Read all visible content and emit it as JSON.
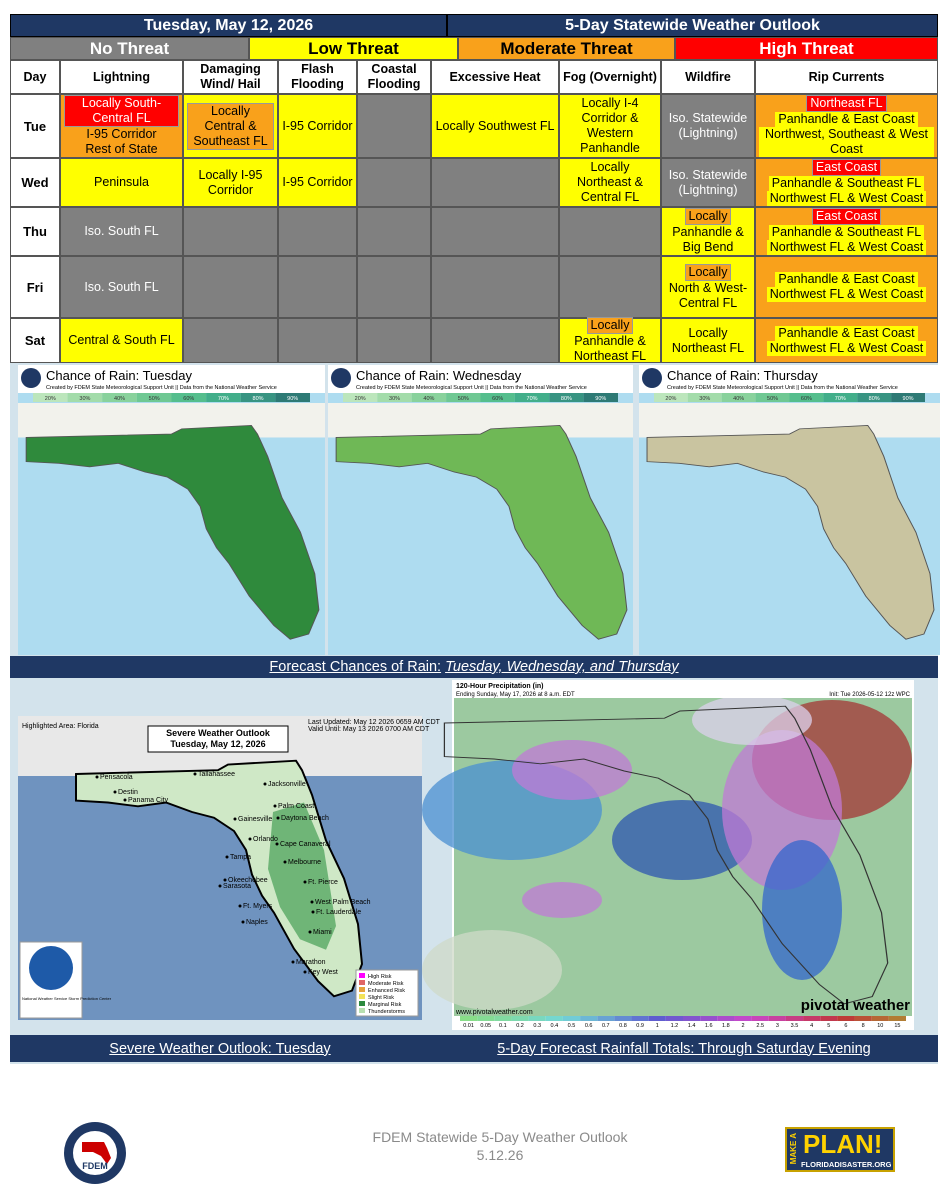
{
  "header": {
    "date": "Tuesday, May 12, 2026",
    "title": "5-Day Statewide Weather Outlook"
  },
  "legend": [
    {
      "label": "No Threat",
      "level": "none"
    },
    {
      "label": "Low Threat",
      "level": "low"
    },
    {
      "label": "Moderate Threat",
      "level": "moderate"
    },
    {
      "label": "High Threat",
      "level": "high"
    }
  ],
  "table": {
    "columns": [
      "Day",
      "Lightning",
      "Damaging Wind/ Hail",
      "Flash Flooding",
      "Coastal Flooding",
      "Excessive Heat",
      "Fog (Overnight)",
      "Wildfire",
      "Rip Currents"
    ],
    "rows": [
      {
        "day": "Tue",
        "cells": [
          {
            "level": "moderate",
            "items": [
              {
                "text": "Locally South-Central FL",
                "level": "high"
              },
              {
                "text": "I-95 Corridor",
                "level": null
              },
              {
                "text": "Rest of State",
                "level": null
              }
            ]
          },
          {
            "level": "low",
            "items": [
              {
                "text": "Locally Central & Southeast FL",
                "level": "moderate"
              }
            ]
          },
          {
            "level": "low",
            "items": [
              {
                "text": "I-95 Corridor",
                "level": null
              }
            ]
          },
          {
            "level": "none",
            "items": []
          },
          {
            "level": "low",
            "items": [
              {
                "text": "Locally Southwest FL",
                "level": null
              }
            ]
          },
          {
            "level": "low",
            "items": [
              {
                "text": "Locally I-4 Corridor & Western Panhandle",
                "level": null
              }
            ]
          },
          {
            "level": "none",
            "items": [
              {
                "text": "Iso. Statewide (Lightning)",
                "level": null
              }
            ]
          },
          {
            "level": "moderate",
            "items": [
              {
                "text": "Northeast FL",
                "level": "high"
              },
              {
                "text": "Panhandle & East Coast",
                "level": "low"
              },
              {
                "text": "Northwest, Southeast & West Coast",
                "level": "low"
              }
            ]
          }
        ]
      },
      {
        "day": "Wed",
        "cells": [
          {
            "level": "low",
            "items": [
              {
                "text": "Peninsula",
                "level": null
              }
            ]
          },
          {
            "level": "low",
            "items": [
              {
                "text": "Locally I-95 Corridor",
                "level": null
              }
            ]
          },
          {
            "level": "low",
            "items": [
              {
                "text": "I-95 Corridor",
                "level": null
              }
            ]
          },
          {
            "level": "none",
            "items": []
          },
          {
            "level": "none",
            "items": []
          },
          {
            "level": "low",
            "items": [
              {
                "text": "Locally Northeast & Central FL",
                "level": null
              }
            ]
          },
          {
            "level": "none",
            "items": [
              {
                "text": "Iso. Statewide (Lightning)",
                "level": null
              }
            ]
          },
          {
            "level": "moderate",
            "items": [
              {
                "text": "East Coast",
                "level": "high"
              },
              {
                "text": "Panhandle & Southeast FL",
                "level": "low"
              },
              {
                "text": "Northwest FL & West Coast",
                "level": "low"
              }
            ]
          }
        ]
      },
      {
        "day": "Thu",
        "cells": [
          {
            "level": "none",
            "items": [
              {
                "text": "Iso. South FL",
                "level": null
              }
            ]
          },
          {
            "level": "none",
            "items": []
          },
          {
            "level": "none",
            "items": []
          },
          {
            "level": "none",
            "items": []
          },
          {
            "level": "none",
            "items": []
          },
          {
            "level": "none",
            "items": []
          },
          {
            "level": "low",
            "items": [
              {
                "text": "Locally",
                "level": "moderate"
              },
              {
                "text": "Panhandle & Big Bend",
                "level": null
              }
            ]
          },
          {
            "level": "moderate",
            "items": [
              {
                "text": "East Coast",
                "level": "high"
              },
              {
                "text": "Panhandle & Southeast FL",
                "level": "low"
              },
              {
                "text": "Northwest FL & West Coast",
                "level": "low"
              }
            ]
          }
        ]
      },
      {
        "day": "Fri",
        "cells": [
          {
            "level": "none",
            "items": [
              {
                "text": "Iso. South FL",
                "level": null
              }
            ]
          },
          {
            "level": "none",
            "items": []
          },
          {
            "level": "none",
            "items": []
          },
          {
            "level": "none",
            "items": []
          },
          {
            "level": "none",
            "items": []
          },
          {
            "level": "none",
            "items": []
          },
          {
            "level": "low",
            "items": [
              {
                "text": "Locally",
                "level": "moderate"
              },
              {
                "text": "North & West-Central FL",
                "level": null
              }
            ]
          },
          {
            "level": "moderate",
            "items": [
              {
                "text": "Panhandle & East Coast",
                "level": "low"
              },
              {
                "text": "Northwest FL & West Coast",
                "level": "low"
              }
            ]
          }
        ]
      },
      {
        "day": "Sat",
        "cells": [
          {
            "level": "low",
            "items": [
              {
                "text": "Central & South FL",
                "level": null
              }
            ]
          },
          {
            "level": "none",
            "items": []
          },
          {
            "level": "none",
            "items": []
          },
          {
            "level": "none",
            "items": []
          },
          {
            "level": "none",
            "items": []
          },
          {
            "level": "low",
            "items": [
              {
                "text": "Locally",
                "level": "moderate"
              },
              {
                "text": "Panhandle & Northeast FL",
                "level": null
              }
            ]
          },
          {
            "level": "low",
            "items": [
              {
                "text": "Locally Northeast FL",
                "level": null
              }
            ]
          },
          {
            "level": "moderate",
            "items": [
              {
                "text": "Panhandle & East Coast",
                "level": "low"
              },
              {
                "text": "Northwest FL & West Coast",
                "level": "low"
              }
            ]
          }
        ]
      }
    ]
  },
  "rain_maps": {
    "credit": "Created by FDEM State Meteorological Support Unit || Data from the National Weather Service",
    "scale": [
      "20%",
      "30%",
      "40%",
      "50%",
      "60%",
      "70%",
      "80%",
      "90%"
    ],
    "maps": [
      {
        "title": "Chance of Rain: Tuesday",
        "color": "#2f8a3c"
      },
      {
        "title": "Chance of Rain: Wednesday",
        "color": "#6fb856"
      },
      {
        "title": "Chance of Rain: Thursday",
        "color": "#c9c4a0"
      }
    ],
    "caption_lead": "Forecast Chances of Rain:",
    "caption_days": "Tuesday, Wednesday, and Thursday"
  },
  "severe": {
    "title": "Severe Weather Outlook",
    "date": "Tuesday, May 12, 2026",
    "area": "Highlighted Area: Florida",
    "updated": "Last Updated: May 12 2026 0659 AM CDT",
    "valid": "Valid Until: May 13 2026 0700 AM CDT",
    "cities": [
      "Pensacola",
      "Destin",
      "Panama City",
      "Tallahassee",
      "Jacksonville",
      "Gainesville",
      "Palm Coast",
      "Daytona Beach",
      "Orlando",
      "Cape Canaveral",
      "Tampa",
      "Melbourne",
      "Okeechobee",
      "Sarasota",
      "Ft. Pierce",
      "Ft. Myers",
      "West Palm Beach",
      "Ft. Lauderdale",
      "Naples",
      "Miami",
      "Marathon",
      "Key West"
    ],
    "legend": [
      {
        "label": "High Risk",
        "color": "#ff00ff"
      },
      {
        "label": "Moderate Risk",
        "color": "#e06666"
      },
      {
        "label": "Enhanced Risk",
        "color": "#e6a23c"
      },
      {
        "label": "Slight Risk",
        "color": "#f2e35a"
      },
      {
        "label": "Marginal Risk",
        "color": "#2d8a3e"
      },
      {
        "label": "Thunderstorms",
        "color": "#b8e0b0"
      }
    ],
    "agency": "National Weather Service Storm Prediction Center",
    "caption": "Severe Weather Outlook: Tuesday"
  },
  "rainfall": {
    "title": "120-Hour Precipitation (in)",
    "ending": "Ending Sunday, May 17, 2026 at 8 a.m. EDT",
    "init": "Init: Tue 2026-05-12 12z WPC",
    "source": "www.pivotalweather.com",
    "brand": "pivotal weather",
    "scale": [
      "0.01",
      "0.05",
      "0.1",
      "0.2",
      "0.3",
      "0.4",
      "0.5",
      "0.6",
      "0.7",
      "0.8",
      "0.9",
      "1",
      "1.2",
      "1.4",
      "1.6",
      "1.8",
      "2",
      "2.5",
      "3",
      "3.5",
      "4",
      "5",
      "6",
      "8",
      "10",
      "15"
    ],
    "caption": "5-Day Forecast Rainfall Totals: Through Saturday Evening"
  },
  "footer": {
    "line1": "FDEM Statewide 5-Day Weather Outlook",
    "line2": "5.12.26",
    "fdem": "FDEM",
    "make": "MAKE A",
    "plan": "PLAN!",
    "site": "FLORIDADISASTER.ORG"
  }
}
